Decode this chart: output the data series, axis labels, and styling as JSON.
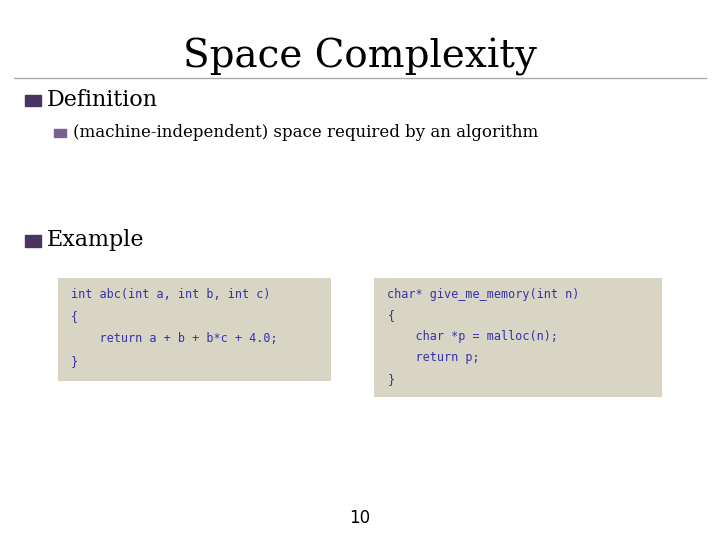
{
  "title": "Space Complexity",
  "background_color": "#ffffff",
  "title_fontsize": 28,
  "title_font": "serif",
  "bullet1_text": "Definition",
  "bullet1_color": "#4a3560",
  "bullet2_text": "(machine-independent) space required by an algorithm",
  "bullet2_color": "#7a6090",
  "bullet3_text": "Example",
  "bullet3_color": "#4a3560",
  "code_bg_color": "#d9d5c5",
  "code_text_color": "#3333aa",
  "code1_lines": [
    "int abc(int a, int b, int c)",
    "{",
    "    return a + b + b*c + 4.0;",
    "}"
  ],
  "code2_lines": [
    "char* give_me_memory(int n)",
    "{",
    "    char *p = malloc(n);",
    "    return p;",
    "}"
  ],
  "page_number": "10",
  "hrule_color": "#aaaaaa"
}
